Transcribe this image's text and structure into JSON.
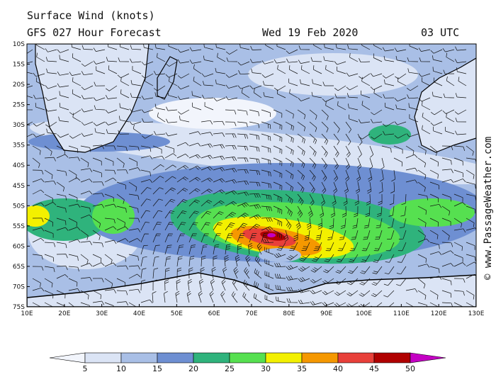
{
  "header": {
    "title": "Surface Wind (knots)",
    "forecast": "GFS 027 Hour Forecast",
    "date": "Wed 19 Feb 2020",
    "time": "03 UTC"
  },
  "map": {
    "lat_labels": [
      "10S",
      "15S",
      "20S",
      "25S",
      "30S",
      "35S",
      "40S",
      "45S",
      "50S",
      "55S",
      "60S",
      "65S",
      "70S",
      "75S"
    ],
    "lon_labels": [
      "10E",
      "20E",
      "30E",
      "40E",
      "50E",
      "60E",
      "70E",
      "80E",
      "90E",
      "100E",
      "110E",
      "120E",
      "130E"
    ]
  },
  "legend": {
    "labels": [
      5,
      10,
      15,
      20,
      25,
      30,
      35,
      40,
      45,
      50
    ],
    "colors": [
      "#f2f5fc",
      "#dbe4f5",
      "#a9bfe6",
      "#6e8fd2",
      "#2fb37c",
      "#56e050",
      "#f3f000",
      "#f59800",
      "#e8403a",
      "#b00000",
      "#c400c4"
    ]
  },
  "watermark": "© www.PassageWeather.com"
}
